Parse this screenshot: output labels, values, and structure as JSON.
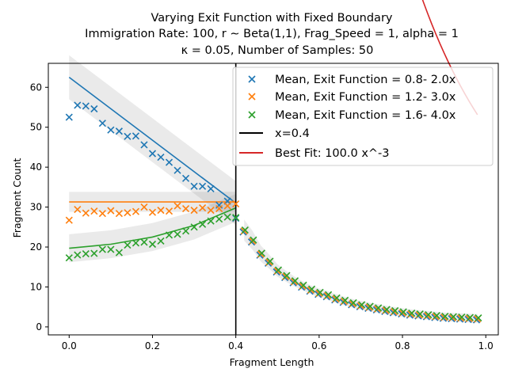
{
  "chart_data": {
    "type": "scatter",
    "title_lines": [
      "Varying Exit Function with Fixed Boundary",
      "Immigration Rate: 100, r ∼ Beta(1,1), Frag_Speed = 1, alpha = 1",
      "κ = 0.05, Number of Samples: 50"
    ],
    "xlabel": "Fragment Length",
    "ylabel": "Fragment Count",
    "xlim": [
      -0.05,
      1.03
    ],
    "ylim": [
      -2,
      66
    ],
    "xticks": [
      0.0,
      0.2,
      0.4,
      0.6,
      0.8,
      1.0
    ],
    "xtick_labels": [
      "0.0",
      "0.2",
      "0.4",
      "0.6",
      "0.8",
      "1.0"
    ],
    "yticks": [
      0,
      10,
      20,
      30,
      40,
      50,
      60
    ],
    "ytick_labels": [
      "0",
      "10",
      "20",
      "30",
      "40",
      "50",
      "60"
    ],
    "grid": false,
    "legend_position": "top-right",
    "series": [
      {
        "name": "Mean, Exit Function = 0.8- 2.0x",
        "color": "#1f77b4",
        "marker": "x",
        "x": [
          0.0,
          0.02,
          0.04,
          0.06,
          0.08,
          0.1,
          0.12,
          0.14,
          0.16,
          0.18,
          0.2,
          0.22,
          0.24,
          0.26,
          0.28,
          0.3,
          0.32,
          0.34,
          0.36,
          0.38,
          0.4
        ],
        "y": [
          52.5,
          55.5,
          55.3,
          54.6,
          51.0,
          49.3,
          49.0,
          47.7,
          47.8,
          45.6,
          43.4,
          42.5,
          41.2,
          39.2,
          37.2,
          35.2,
          35.2,
          34.6,
          30.5,
          31.5,
          27.2
        ],
        "fit_line": {
          "x": [
            0.0,
            0.4
          ],
          "y": [
            62.5,
            31.0
          ]
        }
      },
      {
        "name": "Mean, Exit Function = 1.2- 3.0x",
        "color": "#ff7f0e",
        "marker": "x",
        "x": [
          0.0,
          0.02,
          0.04,
          0.06,
          0.08,
          0.1,
          0.12,
          0.14,
          0.16,
          0.18,
          0.2,
          0.22,
          0.24,
          0.26,
          0.28,
          0.3,
          0.32,
          0.34,
          0.36,
          0.38,
          0.4
        ],
        "y": [
          26.7,
          29.4,
          28.5,
          29.0,
          28.4,
          29.1,
          28.4,
          28.6,
          28.9,
          30.0,
          28.7,
          29.2,
          29.0,
          30.3,
          29.6,
          29.2,
          29.8,
          29.2,
          29.6,
          30.3,
          30.8
        ],
        "fit_line": {
          "x": [
            0.0,
            0.4
          ],
          "y": [
            31.3,
            31.3
          ]
        }
      },
      {
        "name": "Mean, Exit Function = 1.6- 4.0x",
        "color": "#2ca02c",
        "marker": "x",
        "x": [
          0.0,
          0.02,
          0.04,
          0.06,
          0.08,
          0.1,
          0.12,
          0.14,
          0.16,
          0.18,
          0.2,
          0.22,
          0.24,
          0.26,
          0.28,
          0.3,
          0.32,
          0.34,
          0.36,
          0.38,
          0.4
        ],
        "y": [
          17.3,
          18.0,
          18.3,
          18.4,
          19.4,
          19.4,
          18.6,
          20.5,
          21.0,
          21.2,
          20.7,
          21.5,
          23.0,
          23.2,
          24.0,
          25.0,
          25.7,
          26.5,
          27.0,
          27.5,
          27.4
        ],
        "fit_line": {
          "x": [
            0.0,
            0.1,
            0.2,
            0.3,
            0.4
          ],
          "y": [
            19.7,
            20.7,
            22.5,
            25.4,
            29.8
          ]
        }
      }
    ],
    "tail_points": {
      "x": [
        0.42,
        0.44,
        0.46,
        0.48,
        0.5,
        0.52,
        0.54,
        0.56,
        0.58,
        0.6,
        0.62,
        0.64,
        0.66,
        0.68,
        0.7,
        0.72,
        0.74,
        0.76,
        0.78,
        0.8,
        0.82,
        0.84,
        0.86,
        0.88,
        0.9,
        0.92,
        0.94,
        0.96,
        0.98
      ],
      "y": [
        24.0,
        21.5,
        18.2,
        16.2,
        14.0,
        12.6,
        11.3,
        10.2,
        9.2,
        8.4,
        7.8,
        7.0,
        6.4,
        5.8,
        5.3,
        4.9,
        4.5,
        4.1,
        3.8,
        3.5,
        3.2,
        3.0,
        2.8,
        2.6,
        2.4,
        2.3,
        2.2,
        2.1,
        2.0
      ]
    },
    "vline": {
      "label": "x=0.4",
      "x": 0.4,
      "color": "#000000"
    },
    "best_fit": {
      "label": "Best Fit: 100.0 x^-3",
      "coefficient": 100.0,
      "exponent": -3,
      "x_range": [
        0.4,
        0.98
      ],
      "color": "#d62728"
    }
  }
}
